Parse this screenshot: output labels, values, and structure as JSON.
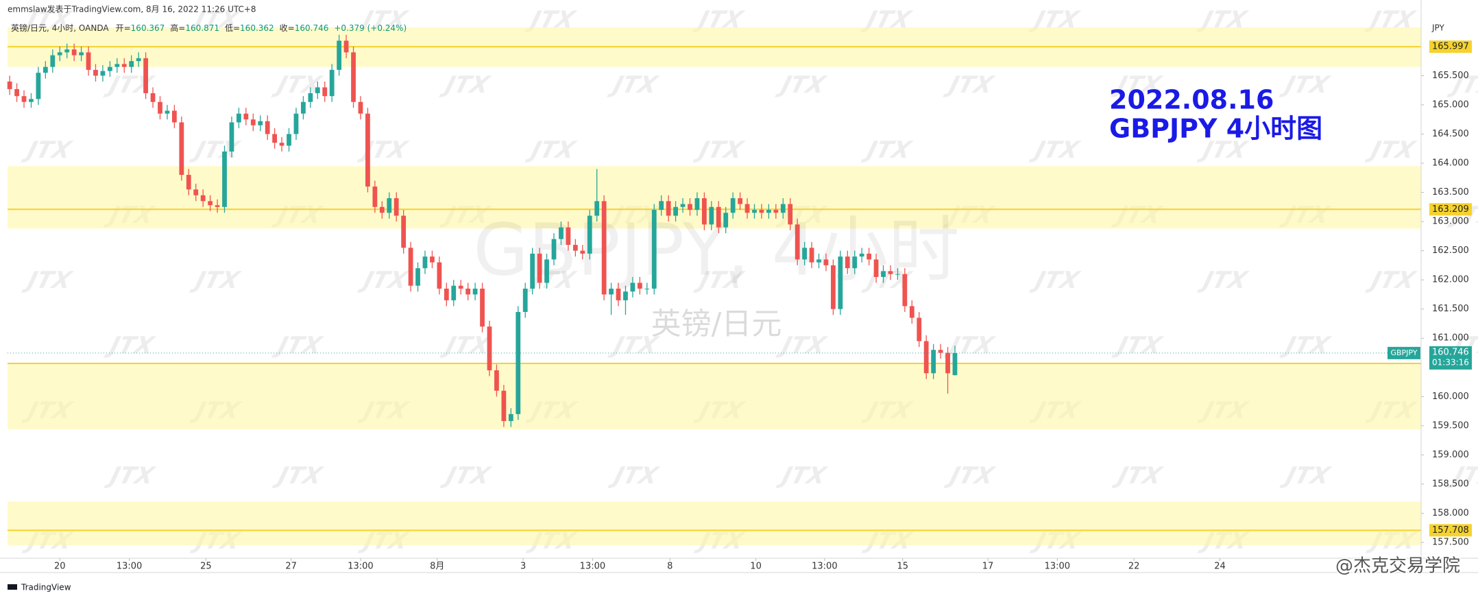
{
  "header": {
    "published": "emmslaw发表于TradingView.com, 8月 16, 2022 11:26 UTC+8"
  },
  "footer": {
    "logo": "TradingView",
    "credit": "@杰克交易学院"
  },
  "watermark_logo": "JTX",
  "chart_data": {
    "type": "candlestick",
    "legend": {
      "symbol": "英镑/日元, 4小时, OANDA",
      "open_label": "开=",
      "high_label": "高=",
      "low_label": "低=",
      "close_label": "收=",
      "change": "+0.379 (+0.24%)"
    },
    "watermark": {
      "main": "GBPJPY, 4小时",
      "sub": "英镑/日元"
    },
    "annotation": [
      "2022.08.16",
      "GBPJPY 4小时图"
    ],
    "y_unit": "JPY",
    "up_color": "#26a69a",
    "down_color": "#ef5350",
    "x": [
      0,
      1,
      2,
      3,
      4,
      5,
      6,
      7,
      8,
      9,
      10,
      11,
      12,
      13,
      14,
      15,
      16,
      17,
      18,
      19,
      20,
      21,
      22,
      23,
      24,
      25,
      26,
      27,
      28,
      29,
      30,
      31,
      32,
      33,
      34,
      35,
      36,
      37,
      38,
      39,
      40,
      41,
      42,
      43,
      44,
      45,
      46,
      47,
      48,
      49,
      50,
      51,
      52,
      53,
      54,
      55,
      56,
      57,
      58,
      59,
      60,
      61,
      62,
      63,
      64,
      65,
      66,
      67,
      68,
      69,
      70,
      71,
      72,
      73,
      74,
      75,
      76,
      77,
      78,
      79,
      80,
      81,
      82,
      83,
      84,
      85,
      86,
      87,
      88,
      89,
      90,
      91,
      92,
      93,
      94,
      95,
      96,
      97,
      98,
      99,
      100,
      101,
      102,
      103,
      104,
      105,
      106,
      107,
      108,
      109,
      110,
      111,
      112,
      113,
      114,
      115,
      116,
      117,
      118,
      119,
      120,
      121,
      122,
      123,
      124,
      125,
      126,
      127,
      128,
      129,
      130,
      131,
      132
    ],
    "open": [
      165.4,
      165.27,
      165.15,
      165.05,
      165.1,
      165.55,
      165.65,
      165.85,
      165.9,
      165.95,
      165.85,
      165.9,
      165.6,
      165.5,
      165.58,
      165.65,
      165.7,
      165.65,
      165.75,
      165.8,
      165.2,
      165.05,
      164.85,
      164.9,
      164.7,
      163.8,
      163.55,
      163.45,
      163.35,
      163.28,
      163.25,
      164.2,
      164.7,
      164.85,
      164.75,
      164.65,
      164.72,
      164.5,
      164.35,
      164.3,
      164.5,
      164.85,
      165.05,
      165.2,
      165.3,
      165.15,
      165.6,
      166.1,
      165.9,
      165.05,
      164.85,
      163.6,
      163.25,
      163.15,
      163.4,
      163.1,
      162.55,
      161.9,
      162.2,
      162.4,
      162.3,
      161.85,
      161.65,
      161.9,
      161.85,
      161.75,
      161.85,
      161.2,
      160.45,
      160.1,
      159.58,
      159.7,
      161.45,
      161.85,
      162.45,
      161.95,
      162.35,
      162.7,
      162.9,
      162.6,
      162.5,
      162.45,
      163.1,
      163.35,
      161.75,
      161.85,
      161.65,
      161.8,
      161.95,
      161.85,
      161.85,
      163.2,
      163.35,
      163.1,
      163.25,
      163.3,
      163.2,
      163.4,
      162.95,
      163.25,
      162.9,
      163.15,
      163.4,
      163.3,
      163.15,
      163.2,
      163.15,
      163.2,
      163.15,
      163.3,
      162.95,
      162.35,
      162.55,
      162.3,
      162.35,
      162.25,
      161.5,
      162.4,
      162.2,
      162.4,
      162.45,
      162.35,
      162.05,
      162.15,
      162.1,
      162.1,
      161.55,
      161.35,
      160.95,
      160.4,
      160.8,
      160.75,
      160.367
    ],
    "high": [
      165.5,
      165.37,
      165.25,
      165.2,
      165.65,
      165.75,
      165.95,
      166.0,
      166.05,
      166.05,
      166.0,
      166.0,
      165.7,
      165.68,
      165.75,
      165.8,
      165.8,
      165.85,
      165.9,
      165.9,
      165.3,
      165.15,
      165.0,
      165.0,
      164.8,
      163.9,
      163.65,
      163.55,
      163.45,
      163.38,
      164.3,
      164.8,
      164.95,
      164.95,
      164.85,
      164.82,
      164.82,
      164.6,
      164.45,
      164.6,
      164.95,
      165.15,
      165.3,
      165.4,
      165.4,
      165.7,
      166.2,
      166.2,
      166.0,
      165.15,
      164.95,
      163.7,
      163.35,
      163.5,
      163.5,
      163.2,
      162.65,
      162.3,
      162.5,
      162.5,
      162.4,
      161.95,
      162.0,
      162.0,
      161.95,
      161.95,
      161.95,
      161.3,
      160.55,
      160.2,
      159.8,
      161.55,
      161.95,
      162.55,
      162.55,
      162.45,
      162.8,
      163.0,
      163.0,
      162.7,
      162.6,
      163.2,
      163.9,
      163.45,
      161.95,
      161.95,
      161.9,
      162.05,
      162.05,
      161.95,
      163.3,
      163.45,
      163.45,
      163.35,
      163.4,
      163.4,
      163.5,
      163.5,
      163.35,
      163.35,
      163.25,
      163.5,
      163.5,
      163.4,
      163.3,
      163.3,
      163.3,
      163.3,
      163.4,
      163.4,
      163.05,
      162.65,
      162.65,
      162.45,
      162.45,
      162.35,
      162.5,
      162.5,
      162.5,
      162.55,
      162.55,
      162.45,
      162.25,
      162.25,
      162.2,
      162.2,
      161.65,
      161.45,
      161.05,
      160.9,
      160.9,
      160.85,
      160.871
    ],
    "low": [
      165.17,
      165.05,
      164.95,
      164.95,
      165.0,
      165.45,
      165.55,
      165.75,
      165.8,
      165.75,
      165.75,
      165.5,
      165.4,
      165.4,
      165.48,
      165.55,
      165.55,
      165.55,
      165.65,
      165.1,
      164.95,
      164.75,
      164.75,
      164.6,
      163.7,
      163.45,
      163.35,
      163.25,
      163.18,
      163.15,
      163.15,
      164.1,
      164.6,
      164.65,
      164.55,
      164.55,
      164.4,
      164.25,
      164.2,
      164.2,
      164.4,
      164.75,
      164.95,
      165.1,
      165.05,
      165.05,
      165.5,
      165.8,
      164.95,
      164.75,
      163.5,
      163.15,
      163.05,
      163.05,
      163.0,
      162.45,
      161.8,
      161.8,
      162.1,
      162.2,
      161.75,
      161.55,
      161.55,
      161.75,
      161.65,
      161.65,
      161.1,
      160.35,
      160.0,
      159.48,
      159.48,
      159.6,
      161.35,
      161.75,
      161.85,
      161.85,
      162.25,
      162.6,
      162.5,
      162.4,
      162.35,
      162.35,
      163.0,
      161.65,
      161.4,
      161.55,
      161.4,
      161.7,
      161.75,
      161.75,
      161.75,
      163.1,
      163.0,
      163.0,
      163.15,
      163.1,
      163.1,
      162.85,
      162.85,
      162.8,
      162.8,
      163.05,
      163.2,
      163.05,
      163.05,
      163.05,
      163.05,
      163.05,
      163.05,
      162.85,
      162.25,
      162.25,
      162.2,
      162.2,
      162.15,
      161.4,
      161.4,
      162.1,
      162.1,
      162.3,
      162.25,
      161.95,
      161.95,
      162.0,
      162.0,
      161.45,
      161.25,
      160.85,
      160.3,
      160.3,
      160.65,
      160.05,
      160.362
    ],
    "close": [
      165.27,
      165.15,
      165.05,
      165.1,
      165.55,
      165.65,
      165.85,
      165.9,
      165.95,
      165.85,
      165.9,
      165.6,
      165.5,
      165.58,
      165.65,
      165.7,
      165.65,
      165.75,
      165.8,
      165.2,
      165.05,
      164.85,
      164.9,
      164.7,
      163.8,
      163.55,
      163.45,
      163.35,
      163.28,
      163.25,
      164.2,
      164.7,
      164.85,
      164.75,
      164.65,
      164.72,
      164.5,
      164.35,
      164.3,
      164.5,
      164.85,
      165.05,
      165.2,
      165.3,
      165.15,
      165.6,
      166.1,
      165.9,
      165.05,
      164.85,
      163.6,
      163.25,
      163.15,
      163.4,
      163.1,
      162.55,
      161.9,
      162.2,
      162.4,
      162.3,
      161.85,
      161.65,
      161.9,
      161.85,
      161.75,
      161.85,
      161.2,
      160.45,
      160.1,
      159.58,
      159.7,
      161.45,
      161.85,
      162.45,
      161.95,
      162.35,
      162.7,
      162.9,
      162.6,
      162.5,
      162.45,
      163.1,
      163.35,
      161.75,
      161.85,
      161.65,
      161.8,
      161.95,
      161.85,
      161.85,
      163.2,
      163.35,
      163.1,
      163.25,
      163.3,
      163.2,
      163.4,
      162.95,
      163.25,
      162.9,
      163.15,
      163.4,
      163.3,
      163.15,
      163.2,
      163.15,
      163.2,
      163.15,
      163.3,
      162.95,
      162.35,
      162.55,
      162.3,
      162.35,
      162.25,
      161.5,
      162.4,
      162.2,
      162.4,
      162.45,
      162.35,
      162.05,
      162.15,
      162.1,
      162.1,
      161.55,
      161.35,
      160.95,
      160.4,
      160.8,
      160.75,
      160.4,
      160.746
    ],
    "last_price": {
      "symbol": "GBPJPY",
      "countdown": "01:33:16",
      "color": "#26a69a"
    },
    "zones": [
      {
        "from": 165.65,
        "to": 166.33,
        "level": 165.997
      },
      {
        "from": 162.88,
        "to": 163.95,
        "level": 163.209
      },
      {
        "from": 159.44,
        "to": 160.58,
        "level": 160.568
      },
      {
        "from": 157.45,
        "to": 158.2,
        "level": 157.708
      }
    ],
    "zone_color": "#fff59d",
    "level_color": "#f5d22e",
    "xlim": [
      -0.3,
      197.1
    ],
    "xticks": [
      {
        "value": 7,
        "label": "20"
      },
      {
        "value": 16.7,
        "label": "13:00"
      },
      {
        "value": 27.4,
        "label": "25"
      },
      {
        "value": 39.3,
        "label": "27"
      },
      {
        "value": 49,
        "label": "13:00"
      },
      {
        "value": 59.7,
        "label": "8月"
      },
      {
        "value": 71.7,
        "label": "3"
      },
      {
        "value": 81.4,
        "label": "13:00"
      },
      {
        "value": 92.2,
        "label": "8"
      },
      {
        "value": 104.2,
        "label": "10"
      },
      {
        "value": 113.8,
        "label": "13:00"
      },
      {
        "value": 124.7,
        "label": "15"
      },
      {
        "value": 136.6,
        "label": "17"
      },
      {
        "value": 146.3,
        "label": "13:00"
      },
      {
        "value": 157,
        "label": "22"
      },
      {
        "value": 169,
        "label": "24"
      }
    ],
    "ylim": [
      157.23,
      166.48
    ],
    "yticks": [
      {
        "value": 157.5,
        "label": "157.500"
      },
      {
        "value": 158,
        "label": "158.000"
      },
      {
        "value": 158.5,
        "label": "158.500"
      },
      {
        "value": 159,
        "label": "159.000"
      },
      {
        "value": 159.5,
        "label": "159.500"
      },
      {
        "value": 160,
        "label": "160.000"
      },
      {
        "value": 161,
        "label": "161.000"
      },
      {
        "value": 161.5,
        "label": "161.500"
      },
      {
        "value": 162,
        "label": "162.000"
      },
      {
        "value": 162.5,
        "label": "162.500"
      },
      {
        "value": 163,
        "label": "163.000"
      },
      {
        "value": 163.5,
        "label": "163.500"
      },
      {
        "value": 164,
        "label": "164.000"
      },
      {
        "value": 164.5,
        "label": "164.500"
      },
      {
        "value": 165,
        "label": "165.000"
      },
      {
        "value": 165.5,
        "label": "165.500"
      }
    ],
    "grid": false
  }
}
